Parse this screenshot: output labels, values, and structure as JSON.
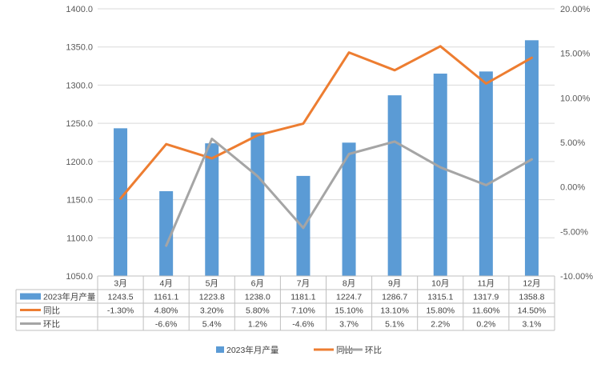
{
  "chart_data": {
    "type": "bar+line",
    "categories": [
      "3月",
      "4月",
      "5月",
      "6月",
      "7月",
      "8月",
      "9月",
      "10月",
      "11月",
      "12月"
    ],
    "series": [
      {
        "name": "2023年月产量",
        "kind": "bar",
        "axis": "left",
        "color": "#5b9bd5",
        "values": [
          1243.5,
          1161.1,
          1223.8,
          1238.0,
          1181.1,
          1224.7,
          1286.7,
          1315.1,
          1317.9,
          1358.8
        ],
        "labels": [
          "1243.5",
          "1161.1",
          "1223.8",
          "1238.0",
          "1181.1",
          "1224.7",
          "1286.7",
          "1315.1",
          "1317.9",
          "1358.8"
        ]
      },
      {
        "name": "同比",
        "kind": "line",
        "axis": "right",
        "color": "#ed7d31",
        "values": [
          -1.3,
          4.8,
          3.2,
          5.8,
          7.1,
          15.1,
          13.1,
          15.8,
          11.6,
          14.5
        ],
        "labels": [
          "-1.30%",
          "4.80%",
          "3.20%",
          "5.80%",
          "7.10%",
          "15.10%",
          "13.10%",
          "15.80%",
          "11.60%",
          "14.50%"
        ]
      },
      {
        "name": "环比",
        "kind": "line",
        "axis": "right",
        "color": "#a5a5a5",
        "values": [
          null,
          -6.6,
          5.4,
          1.2,
          -4.6,
          3.7,
          5.1,
          2.2,
          0.2,
          3.1
        ],
        "labels": [
          "",
          "-6.6%",
          "5.4%",
          "1.2%",
          "-4.6%",
          "3.7%",
          "5.1%",
          "2.2%",
          "0.2%",
          "3.1%"
        ]
      }
    ],
    "y_left": {
      "min": 1050,
      "max": 1400,
      "step": 50,
      "ticks": [
        "1050.0",
        "1100.0",
        "1150.0",
        "1200.0",
        "1250.0",
        "1300.0",
        "1350.0",
        "1400.0"
      ]
    },
    "y_right": {
      "min": -10,
      "max": 20,
      "step": 5,
      "ticks": [
        "-10.00%",
        "-5.00%",
        "0.00%",
        "5.00%",
        "10.00%",
        "15.00%",
        "20.00%"
      ]
    },
    "grid": true,
    "legend_position": "bottom",
    "legend": [
      "2023年月产量",
      "同比",
      "环比"
    ],
    "data_table": true
  }
}
